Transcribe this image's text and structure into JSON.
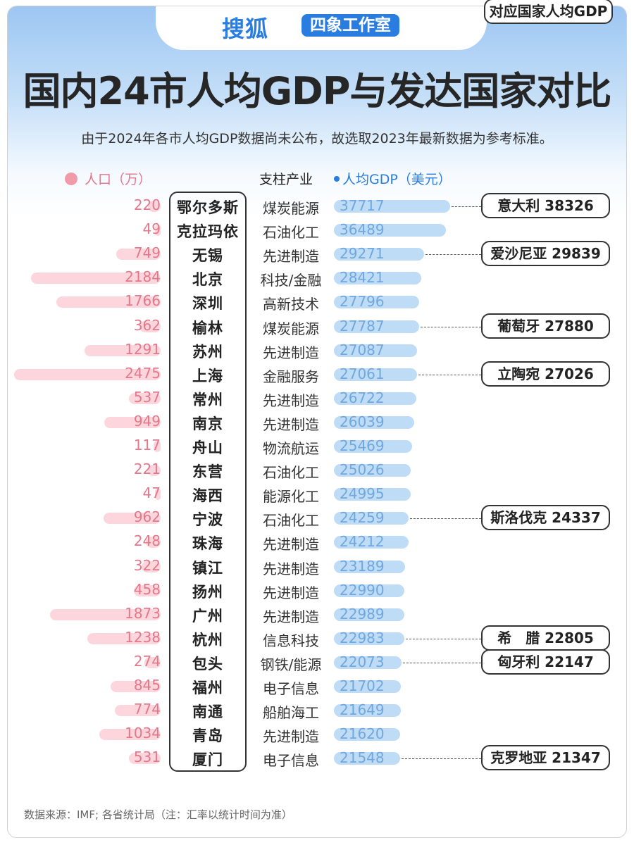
{
  "header": {
    "brand": "搜狐",
    "studio": "四象工作室",
    "title": "国内24市人均GDP与发达国家对比",
    "subtitle": "由于2024年各市人均GDP数据尚未公布，故选取2023年最新数据为参考标准。"
  },
  "legend": {
    "population": "人口（万）",
    "industry": "支柱产业",
    "gdp": "人均GDP（美元）",
    "country": "对应国家人均GDP"
  },
  "footer": {
    "source": "数据来源：IMF; 各省统计局（注：汇率以统计时间为准）"
  },
  "colors": {
    "population_bar": "#fcd6dc",
    "population_text": "#e2788a",
    "gdp_bar": "#bfdcf6",
    "gdp_text": "#6fa7de",
    "brand_blue": "#2a7de0"
  },
  "chart_data": {
    "type": "bar",
    "title": "国内24市人均GDP与发达国家对比",
    "categories": [
      "鄂尔多斯",
      "克拉玛依",
      "无锡",
      "北京",
      "深圳",
      "榆林",
      "苏州",
      "上海",
      "常州",
      "南京",
      "舟山",
      "东营",
      "海西",
      "宁波",
      "珠海",
      "镇江",
      "扬州",
      "广州",
      "杭州",
      "包头",
      "福州",
      "南通",
      "青岛",
      "厦门"
    ],
    "industries": [
      "煤炭能源",
      "石油化工",
      "先进制造",
      "科技/金融",
      "高新技术",
      "煤炭能源",
      "先进制造",
      "金融服务",
      "先进制造",
      "先进制造",
      "物流航运",
      "石油化工",
      "能源化工",
      "石油化工",
      "先进制造",
      "先进制造",
      "先进制造",
      "先进制造",
      "信息科技",
      "钢铁/能源",
      "电子信息",
      "船舶海工",
      "先进制造",
      "电子信息"
    ],
    "series": [
      {
        "name": "人口（万）",
        "values": [
          220,
          49,
          749,
          2184,
          1766,
          362,
          1291,
          2475,
          537,
          949,
          117,
          221,
          47,
          962,
          248,
          322,
          458,
          1873,
          1238,
          274,
          845,
          774,
          1034,
          531
        ]
      },
      {
        "name": "人均GDP（美元）",
        "values": [
          37717,
          36489,
          29271,
          28421,
          27796,
          27787,
          27087,
          27061,
          26722,
          26039,
          25469,
          25026,
          24995,
          24259,
          24212,
          23189,
          22990,
          22989,
          22983,
          22073,
          21702,
          21649,
          21620,
          21548
        ]
      }
    ],
    "country_comparisons": [
      {
        "city_index": 0,
        "country": "意大利",
        "gdp": 38326
      },
      {
        "city_index": 2,
        "country": "爱沙尼亚",
        "gdp": 29839
      },
      {
        "city_index": 5,
        "country": "葡萄牙",
        "gdp": 27880
      },
      {
        "city_index": 7,
        "country": "立陶宛",
        "gdp": 27026
      },
      {
        "city_index": 13,
        "country": "斯洛伐克",
        "gdp": 24337
      },
      {
        "city_index": 18,
        "country": "希　腊",
        "gdp": 22805
      },
      {
        "city_index": 19,
        "country": "匈牙利",
        "gdp": 22147
      },
      {
        "city_index": 23,
        "country": "克罗地亚",
        "gdp": 21347
      }
    ]
  }
}
